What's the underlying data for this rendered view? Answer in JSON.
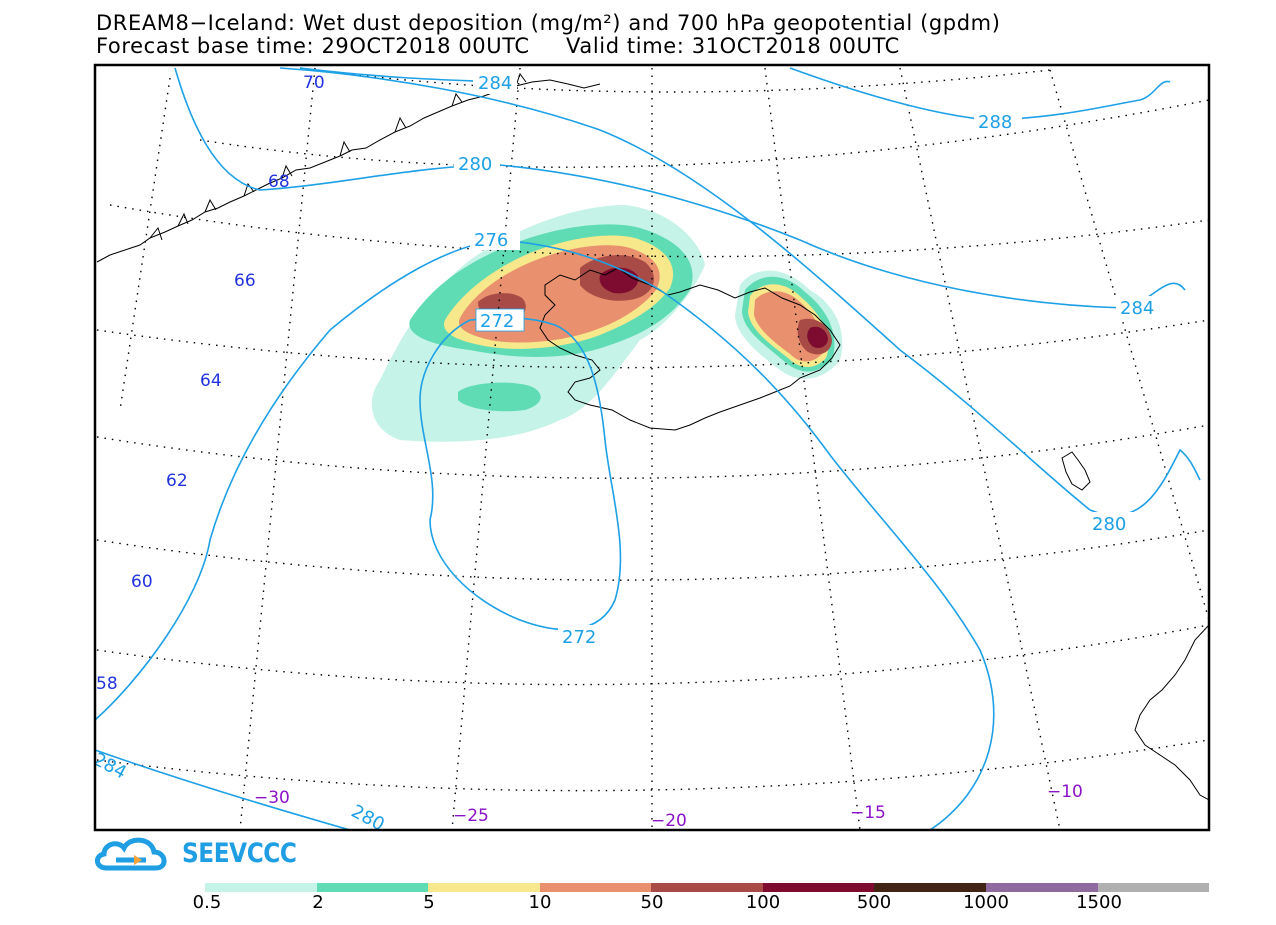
{
  "title": {
    "line1": "DREAM8−Iceland: Wet dust deposition (mg/m²) and 700 hPa geopotential (gpdm)",
    "line2": "Forecast base time: 29OCT2018 00UTC     Valid time: 31OCT2018 00UTC"
  },
  "map": {
    "lat_labels": [
      "70",
      "68",
      "66",
      "64",
      "62",
      "60",
      "58"
    ],
    "lon_labels": [
      "−30",
      "−25",
      "−20",
      "−15",
      "−10"
    ],
    "contour_labels": [
      "284",
      "288",
      "280",
      "276",
      "272",
      "284",
      "280",
      "272",
      "280",
      "284"
    ],
    "colors": {
      "contour": "#1ea0e6",
      "lat_label": "#2233dd",
      "lon_label": "#8a12c8",
      "coast": "#000000"
    }
  },
  "logo": {
    "text": "SEEVCCC",
    "color": "#1f9ee3"
  },
  "colorbar": {
    "colors": [
      "#c6f3e7",
      "#5fdcb4",
      "#f7e88c",
      "#e9906e",
      "#a84a45",
      "#7e0c30",
      "#402515",
      "#8f6a9e",
      "#b0b0b0"
    ],
    "labels": [
      "0.5",
      "2",
      "5",
      "10",
      "50",
      "100",
      "500",
      "1000",
      "1500"
    ]
  }
}
